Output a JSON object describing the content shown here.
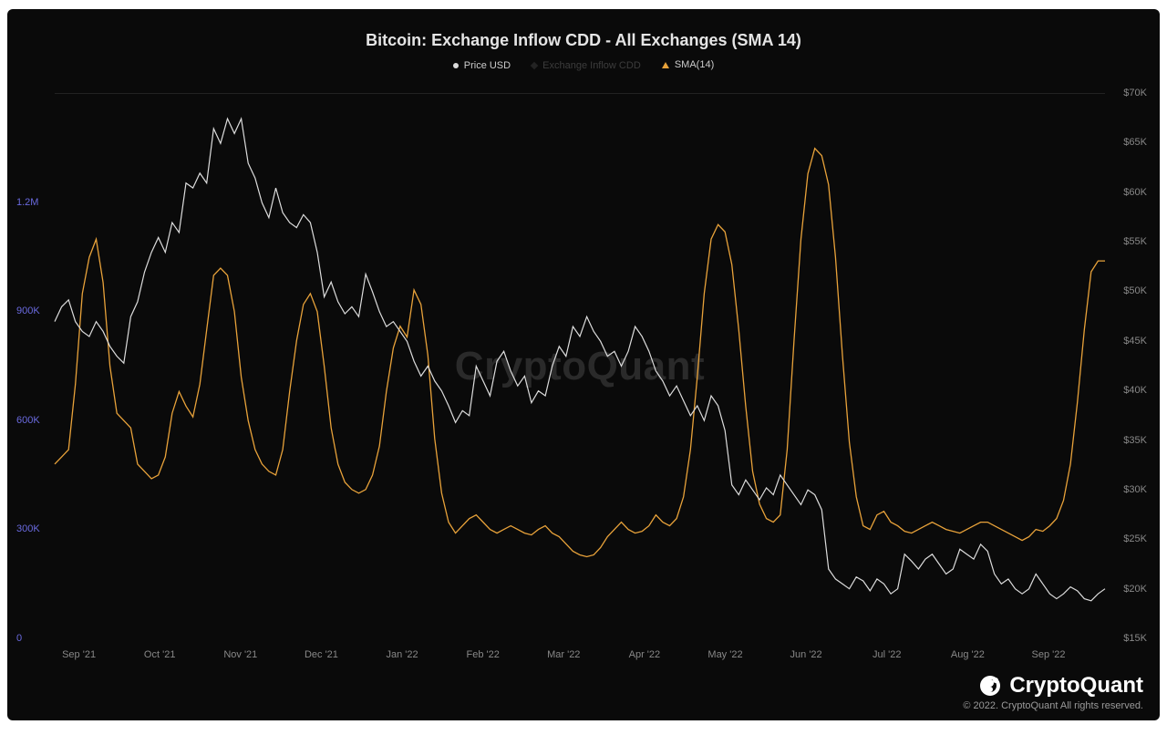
{
  "chart": {
    "type": "line",
    "background_color": "#0a0a0a",
    "title": "Bitcoin: Exchange Inflow CDD - All Exchanges (SMA 14)",
    "title_fontsize": 18,
    "title_color": "#e5e5e5",
    "watermark": "CryptoQuant",
    "watermark_color": "#2a2a2a",
    "legend": {
      "items": [
        {
          "label": "Price USD",
          "color": "#dcdcdc",
          "shape": "circle",
          "dim": false
        },
        {
          "label": "Exchange Inflow CDD",
          "color": "#707070",
          "shape": "diamond",
          "dim": true
        },
        {
          "label": "SMA(14)",
          "color": "#e8a23a",
          "shape": "triangle",
          "dim": false
        }
      ]
    },
    "y_left": {
      "label_color": "#6a6adf",
      "ticks": [
        {
          "value": 0,
          "label": "0"
        },
        {
          "value": 300000,
          "label": "300K"
        },
        {
          "value": 600000,
          "label": "600K"
        },
        {
          "value": 900000,
          "label": "900K"
        },
        {
          "value": 1200000,
          "label": "1.2M"
        }
      ],
      "min": 0,
      "max": 1500000
    },
    "y_right": {
      "label_color": "#888888",
      "ticks": [
        {
          "value": 15000,
          "label": "$15K"
        },
        {
          "value": 20000,
          "label": "$20K"
        },
        {
          "value": 25000,
          "label": "$25K"
        },
        {
          "value": 30000,
          "label": "$30K"
        },
        {
          "value": 35000,
          "label": "$35K"
        },
        {
          "value": 40000,
          "label": "$40K"
        },
        {
          "value": 45000,
          "label": "$45K"
        },
        {
          "value": 50000,
          "label": "$50K"
        },
        {
          "value": 55000,
          "label": "$55K"
        },
        {
          "value": 60000,
          "label": "$60K"
        },
        {
          "value": 65000,
          "label": "$65K"
        },
        {
          "value": 70000,
          "label": "$70K"
        }
      ],
      "min": 15000,
      "max": 70000
    },
    "x_axis": {
      "labels": [
        "Sep '21",
        "Oct '21",
        "Nov '21",
        "Dec '21",
        "Jan '22",
        "Feb '22",
        "Mar '22",
        "Apr '22",
        "May '22",
        "Jun '22",
        "Jul '22",
        "Aug '22",
        "Sep '22"
      ],
      "label_color": "#888888"
    },
    "series": {
      "price_usd": {
        "color": "#dcdcdc",
        "line_width": 1.2,
        "axis": "right",
        "data": [
          47000,
          48500,
          49200,
          47000,
          46000,
          45500,
          47000,
          46000,
          44500,
          43500,
          42800,
          47500,
          49000,
          52000,
          54000,
          55500,
          54000,
          57000,
          56000,
          61000,
          60500,
          62000,
          61000,
          66500,
          65000,
          67500,
          66000,
          67500,
          63000,
          61500,
          59000,
          57500,
          60500,
          58000,
          57000,
          56500,
          57800,
          57000,
          54000,
          49500,
          51000,
          49000,
          47800,
          48500,
          47500,
          51800,
          50000,
          48000,
          46500,
          47000,
          46000,
          45000,
          43000,
          41500,
          42500,
          41000,
          40000,
          38500,
          36800,
          38000,
          37500,
          42500,
          41000,
          39500,
          43000,
          44000,
          42000,
          40500,
          41500,
          38800,
          40000,
          39500,
          42500,
          44500,
          43500,
          46500,
          45500,
          47500,
          46000,
          45000,
          43500,
          44000,
          42500,
          44000,
          46500,
          45500,
          44000,
          42000,
          41000,
          39500,
          40500,
          39000,
          37500,
          38500,
          37000,
          39500,
          38500,
          36000,
          30500,
          29500,
          31000,
          30000,
          29000,
          30200,
          29500,
          31500,
          30500,
          29500,
          28500,
          30000,
          29500,
          28000,
          22000,
          21000,
          20500,
          20000,
          21200,
          20800,
          19800,
          21000,
          20500,
          19500,
          20000,
          23500,
          22800,
          22000,
          23000,
          23500,
          22500,
          21500,
          22000,
          24000,
          23500,
          23000,
          24500,
          23800,
          21500,
          20500,
          21000,
          20000,
          19500,
          20000,
          21500,
          20500,
          19500,
          19000,
          19500,
          20200,
          19800,
          19000,
          18800,
          19500,
          20000
        ]
      },
      "sma14": {
        "color": "#e8a23a",
        "line_width": 1.3,
        "axis": "left",
        "data": [
          480000,
          500000,
          520000,
          700000,
          950000,
          1050000,
          1100000,
          980000,
          750000,
          620000,
          600000,
          580000,
          480000,
          460000,
          440000,
          450000,
          500000,
          620000,
          680000,
          640000,
          610000,
          700000,
          850000,
          1000000,
          1020000,
          1000000,
          900000,
          720000,
          600000,
          520000,
          480000,
          460000,
          450000,
          520000,
          680000,
          820000,
          920000,
          950000,
          900000,
          750000,
          580000,
          480000,
          430000,
          410000,
          400000,
          410000,
          450000,
          530000,
          680000,
          800000,
          860000,
          830000,
          960000,
          920000,
          780000,
          550000,
          400000,
          320000,
          290000,
          310000,
          330000,
          340000,
          320000,
          300000,
          290000,
          300000,
          310000,
          300000,
          290000,
          285000,
          300000,
          310000,
          290000,
          280000,
          260000,
          240000,
          230000,
          225000,
          230000,
          250000,
          280000,
          300000,
          320000,
          300000,
          290000,
          295000,
          310000,
          340000,
          320000,
          310000,
          330000,
          390000,
          520000,
          720000,
          950000,
          1100000,
          1140000,
          1120000,
          1030000,
          850000,
          640000,
          460000,
          370000,
          330000,
          320000,
          340000,
          520000,
          820000,
          1100000,
          1280000,
          1350000,
          1330000,
          1250000,
          1050000,
          780000,
          540000,
          390000,
          310000,
          300000,
          340000,
          350000,
          320000,
          310000,
          295000,
          290000,
          300000,
          310000,
          320000,
          310000,
          300000,
          295000,
          290000,
          300000,
          310000,
          320000,
          320000,
          310000,
          300000,
          290000,
          280000,
          270000,
          280000,
          300000,
          295000,
          310000,
          330000,
          380000,
          480000,
          650000,
          850000,
          1010000,
          1040000,
          1040000
        ]
      }
    }
  },
  "brand": {
    "name": "CryptoQuant",
    "logo_color": "#ffffff",
    "copyright": "© 2022. CryptoQuant All rights reserved."
  }
}
